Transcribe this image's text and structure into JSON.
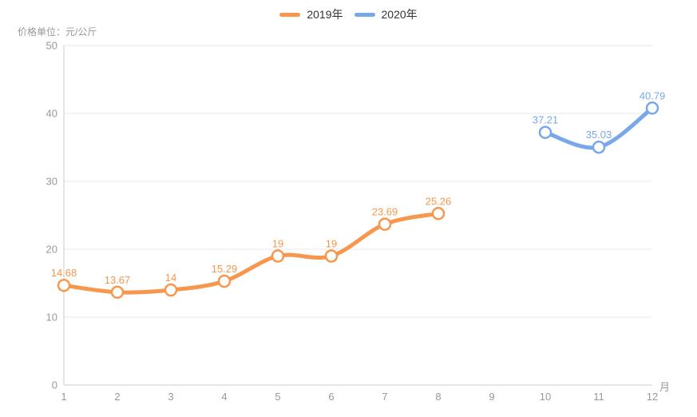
{
  "chart_data": {
    "type": "line",
    "smooth": true,
    "title": "",
    "y_axis_name": "价格单位：元/公斤",
    "x_axis_name": "月",
    "categories": [
      "1",
      "2",
      "3",
      "4",
      "5",
      "6",
      "7",
      "8",
      "9",
      "10",
      "11",
      "12"
    ],
    "ylim": [
      0,
      50
    ],
    "y_ticks": [
      0,
      10,
      20,
      30,
      40,
      50
    ],
    "grid": true,
    "legend_position": "top-center",
    "series": [
      {
        "name": "2019年",
        "color": "#f7974d",
        "x": [
          "1",
          "2",
          "3",
          "4",
          "5",
          "6",
          "7",
          "8"
        ],
        "values": [
          14.68,
          13.67,
          14,
          15.29,
          19,
          19,
          23.69,
          25.26
        ],
        "labels": [
          "14.68",
          "13.67",
          "14",
          "15.29",
          "19",
          "19",
          "23.69",
          "25.26"
        ]
      },
      {
        "name": "2020年",
        "color": "#78a8ea",
        "x": [
          "10",
          "11",
          "12"
        ],
        "values": [
          37.21,
          35.03,
          40.79
        ],
        "labels": [
          "37.21",
          "35.03",
          "40.79"
        ]
      }
    ]
  }
}
